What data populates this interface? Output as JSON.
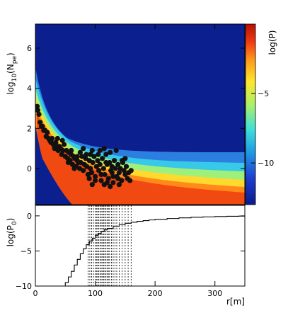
{
  "chart_data": [
    {
      "type": "heatmap",
      "panel": "top",
      "ylabel_main": "log",
      "ylabel_sub": "10",
      "ylabel_paren": "(N",
      "ylabel_pe": "pe",
      "ylabel_close": ")",
      "colorbar_label": "log(P)",
      "xlim": [
        0,
        350
      ],
      "ylim": [
        -1.8,
        7.2
      ],
      "yticks": [
        0,
        2,
        4,
        6
      ],
      "yticklabels": [
        "0",
        "2",
        "4",
        "6"
      ],
      "colorbar_range": [
        -13,
        0
      ],
      "colorbar_ticks": [
        -5,
        -10
      ],
      "colorbar_ticklabels": [
        "−5",
        "−10"
      ],
      "colorbar_gradient": [
        "#0b1a8c",
        "#1f3fd0",
        "#1fa0e6",
        "#40e0d8",
        "#a8f06a",
        "#ffe62e",
        "#ff9a1a",
        "#f23b10",
        "#b50f05"
      ],
      "background_color": "#0c1f8e",
      "points": [
        [
          3,
          3.1
        ],
        [
          4,
          2.9
        ],
        [
          6,
          2.7
        ],
        [
          8,
          2.3
        ],
        [
          10,
          2.1
        ],
        [
          12,
          2.1
        ],
        [
          14,
          1.9
        ],
        [
          16,
          1.9
        ],
        [
          18,
          1.6
        ],
        [
          20,
          1.8
        ],
        [
          22,
          1.5
        ],
        [
          24,
          1.4
        ],
        [
          26,
          1.3
        ],
        [
          28,
          1.5
        ],
        [
          30,
          1.2
        ],
        [
          32,
          1.0
        ],
        [
          34,
          1.3
        ],
        [
          36,
          1.1
        ],
        [
          38,
          0.9
        ],
        [
          40,
          1.1
        ],
        [
          42,
          1.0
        ],
        [
          44,
          0.7
        ],
        [
          46,
          0.9
        ],
        [
          48,
          1.2
        ],
        [
          50,
          0.6
        ],
        [
          52,
          0.9
        ],
        [
          54,
          0.5
        ],
        [
          56,
          0.8
        ],
        [
          58,
          0.4
        ],
        [
          60,
          0.7
        ],
        [
          62,
          0.2
        ],
        [
          64,
          0.6
        ],
        [
          66,
          0.5
        ],
        [
          68,
          0.1
        ],
        [
          70,
          0.4
        ],
        [
          72,
          0.3
        ],
        [
          74,
          0.0
        ],
        [
          76,
          0.3
        ],
        [
          78,
          0.6
        ],
        [
          80,
          -0.1
        ],
        [
          82,
          0.2
        ],
        [
          84,
          0.5
        ],
        [
          86,
          0.1
        ],
        [
          88,
          -0.3
        ],
        [
          90,
          0.4
        ],
        [
          92,
          0.0
        ],
        [
          94,
          -0.2
        ],
        [
          96,
          0.3
        ],
        [
          98,
          0.6
        ],
        [
          100,
          -0.4
        ],
        [
          102,
          0.1
        ],
        [
          104,
          0.4
        ],
        [
          106,
          -0.1
        ],
        [
          108,
          0.2
        ],
        [
          110,
          -0.6
        ],
        [
          112,
          0.5
        ],
        [
          114,
          0.0
        ],
        [
          116,
          -0.3
        ],
        [
          118,
          0.7
        ],
        [
          120,
          0.2
        ],
        [
          122,
          -0.5
        ],
        [
          124,
          0.3
        ],
        [
          126,
          -0.1
        ],
        [
          128,
          0.1
        ],
        [
          130,
          -0.7
        ],
        [
          132,
          0.4
        ],
        [
          134,
          0.0
        ],
        [
          136,
          -0.4
        ],
        [
          138,
          0.2
        ],
        [
          140,
          -0.2
        ],
        [
          142,
          0.0
        ],
        [
          144,
          -0.6
        ],
        [
          146,
          0.3
        ],
        [
          148,
          -0.1
        ],
        [
          150,
          -0.3
        ],
        [
          152,
          0.1
        ],
        [
          154,
          -0.5
        ],
        [
          156,
          -0.2
        ],
        [
          158,
          -0.6
        ],
        [
          160,
          -0.1
        ],
        [
          55,
          0.3
        ],
        [
          65,
          0.0
        ],
        [
          75,
          0.8
        ],
        [
          85,
          0.7
        ],
        [
          95,
          0.9
        ],
        [
          105,
          0.7
        ],
        [
          115,
          1.0
        ],
        [
          125,
          0.8
        ],
        [
          135,
          0.9
        ],
        [
          100,
          -0.6
        ],
        [
          110,
          -0.3
        ],
        [
          120,
          -0.7
        ],
        [
          130,
          -0.4
        ],
        [
          140,
          -0.8
        ],
        [
          115,
          -0.8
        ],
        [
          125,
          -0.9
        ],
        [
          90,
          -0.5
        ],
        [
          70,
          0.6
        ],
        [
          60,
          0.9
        ],
        [
          45,
          1.4
        ],
        [
          37,
          1.5
        ],
        [
          80,
          1.0
        ],
        [
          92,
          0.7
        ],
        [
          108,
          0.9
        ],
        [
          118,
          0.3
        ],
        [
          128,
          -0.2
        ],
        [
          138,
          -0.5
        ],
        [
          150,
          0.5
        ],
        [
          145,
          0.4
        ],
        [
          95,
          -0.8
        ]
      ]
    },
    {
      "type": "line",
      "panel": "bottom",
      "ylabel_main": "log(P",
      "ylabel_sub": "0",
      "ylabel_close": ")",
      "xlabel": "r[m]",
      "xlim": [
        0,
        350
      ],
      "ylim": [
        -10,
        1.5
      ],
      "xticks": [
        0,
        100,
        200,
        300
      ],
      "xticklabels": [
        "0",
        "100",
        "200",
        "300"
      ],
      "yticks": [
        0,
        -5,
        -10
      ],
      "yticklabels": [
        "0",
        "−5",
        "−10"
      ],
      "series": [
        {
          "x": [
            0,
            45,
            50,
            55,
            60,
            65,
            70,
            75,
            80,
            85,
            90,
            95,
            100,
            105,
            110,
            115,
            120,
            130,
            140,
            150,
            160,
            170,
            180,
            190,
            200,
            220,
            240,
            260,
            280,
            300,
            320,
            340,
            350
          ],
          "y": [
            -10,
            -10,
            -9.5,
            -8.7,
            -7.9,
            -7.0,
            -6.2,
            -5.4,
            -4.7,
            -4.1,
            -3.6,
            -3.2,
            -2.8,
            -2.5,
            -2.2,
            -2.0,
            -1.8,
            -1.5,
            -1.25,
            -1.05,
            -0.9,
            -0.78,
            -0.68,
            -0.58,
            -0.5,
            -0.38,
            -0.28,
            -0.2,
            -0.14,
            -0.1,
            -0.06,
            -0.03,
            -0.02
          ]
        }
      ],
      "vlines": [
        88,
        91,
        94,
        97,
        100,
        102,
        104,
        106,
        108,
        110,
        112,
        114,
        116,
        118,
        120,
        122,
        124,
        127,
        130,
        133,
        136,
        140,
        145,
        150,
        155,
        160
      ]
    }
  ]
}
